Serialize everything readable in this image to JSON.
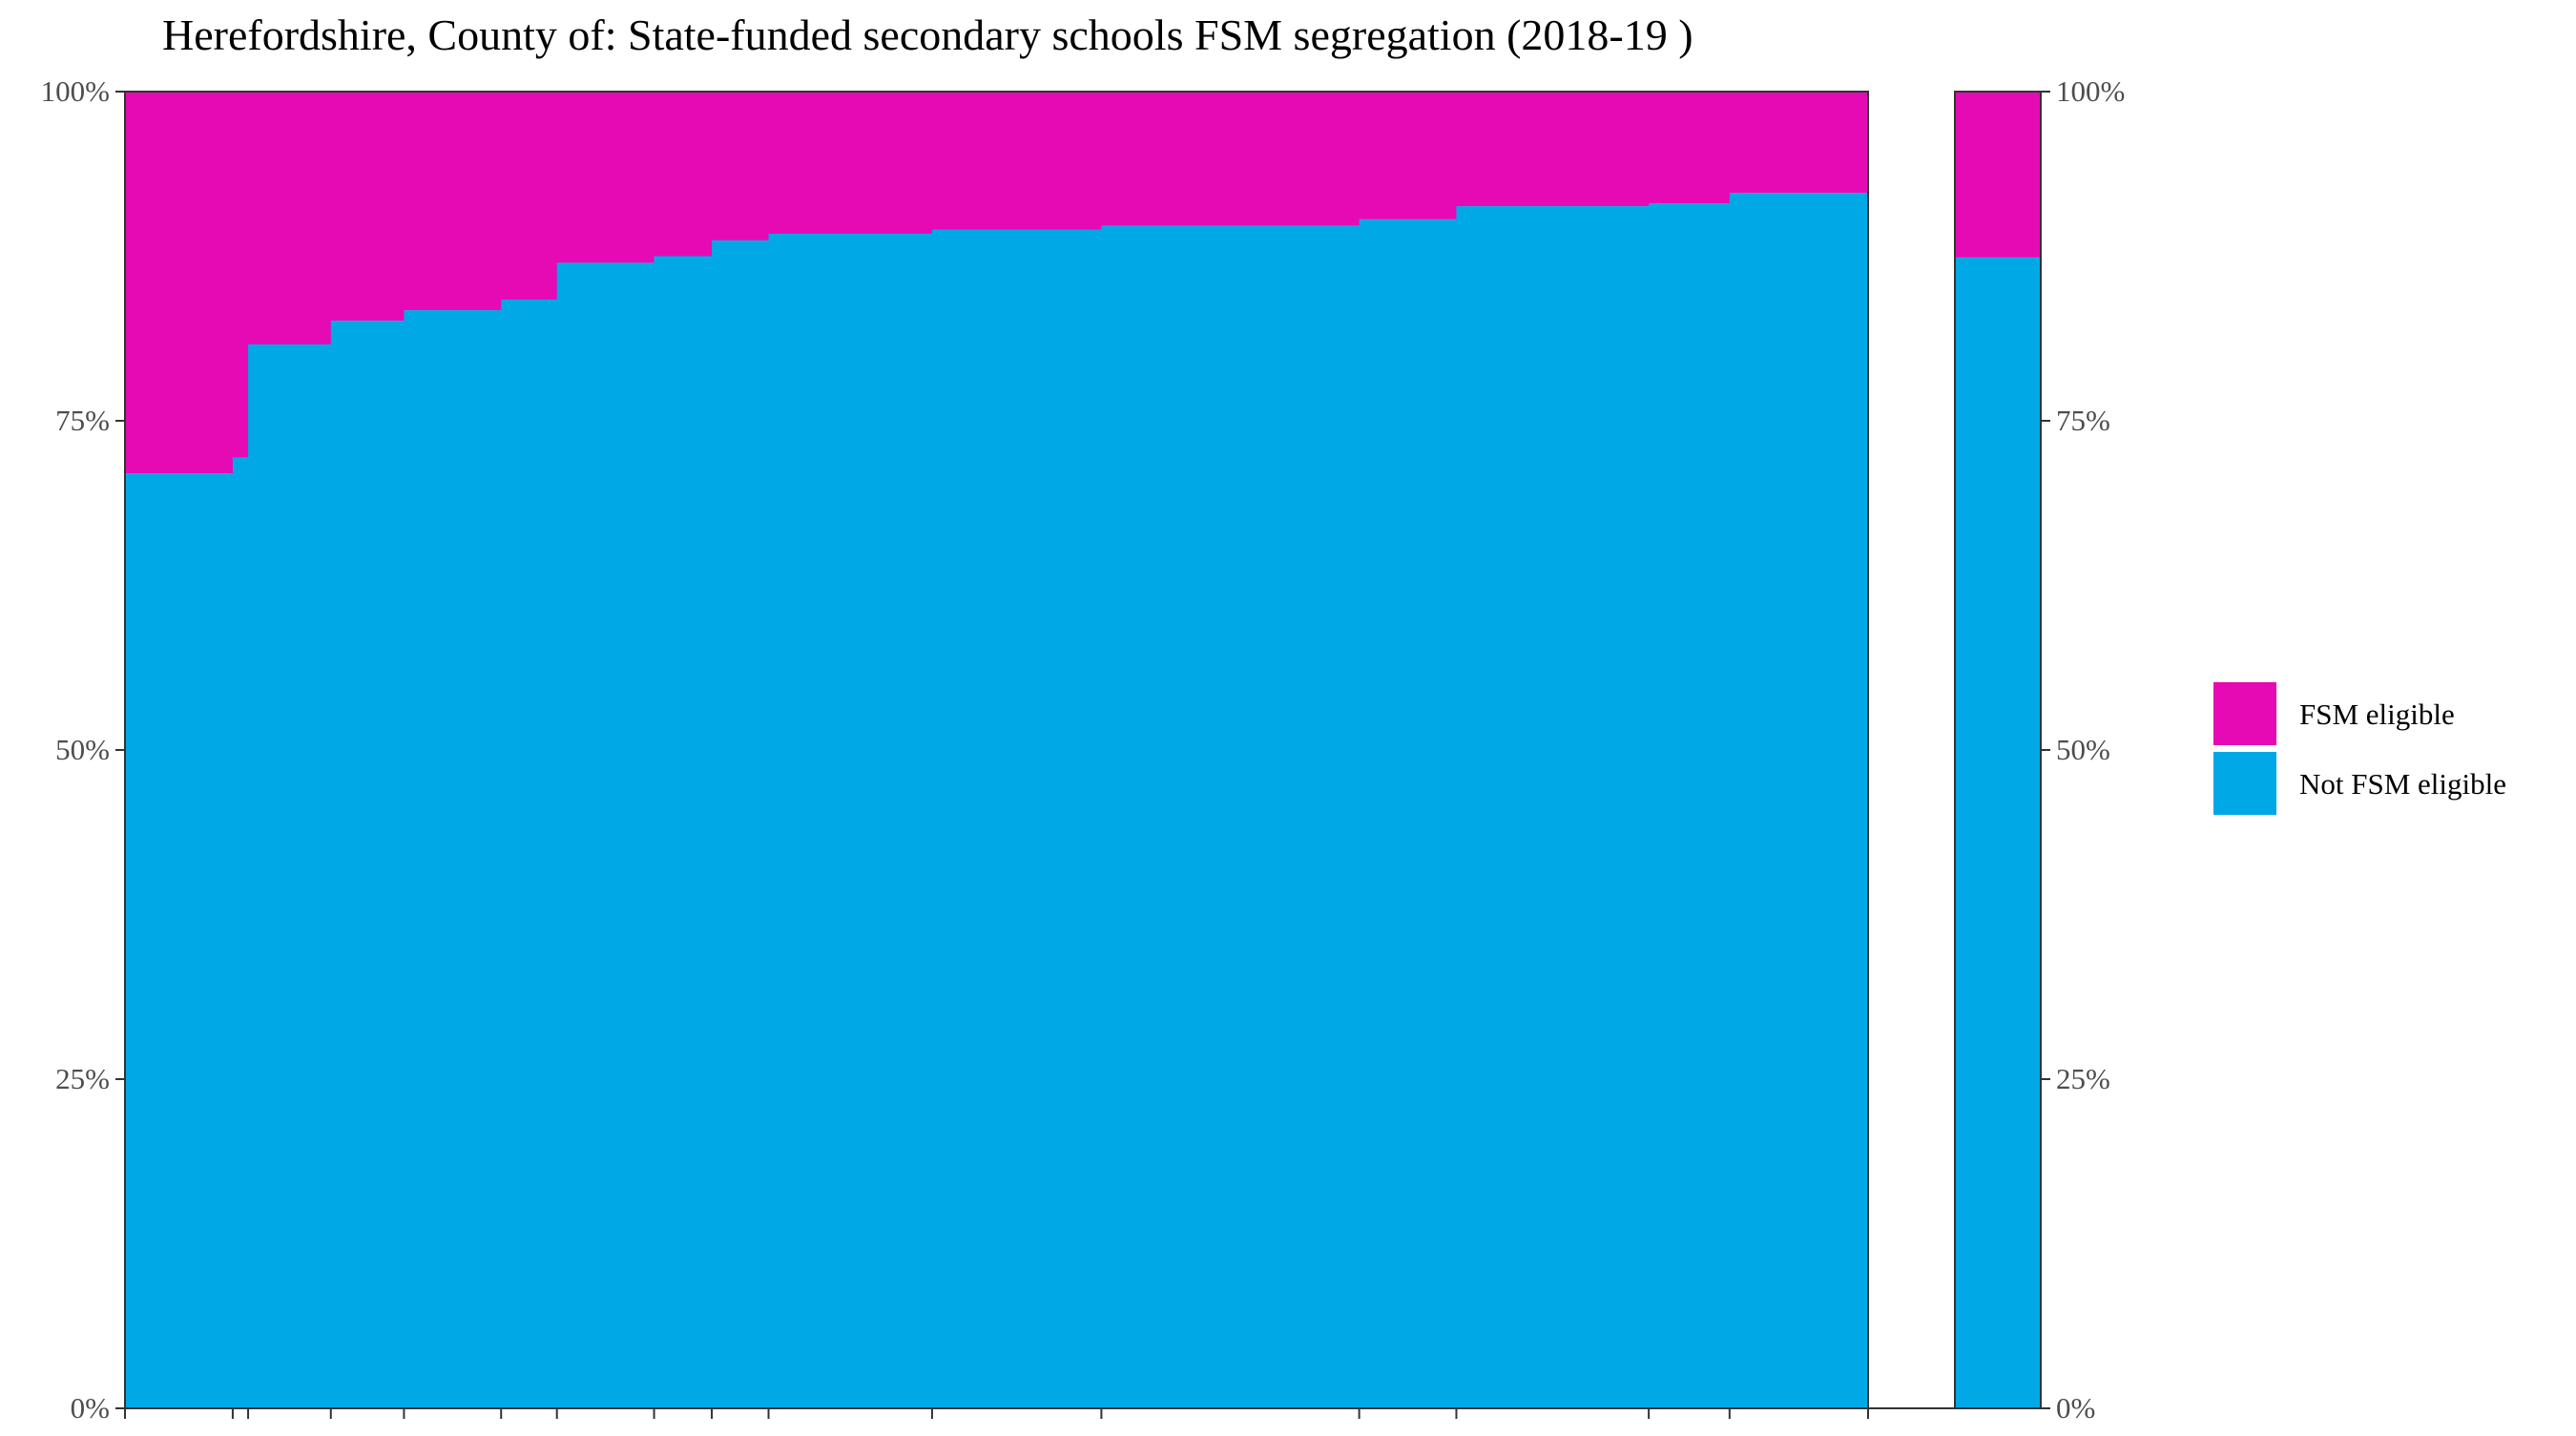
{
  "chart_data": {
    "type": "bar",
    "title": "Herefordshire, County of: State-funded secondary schools FSM segregation (2018-19 )",
    "xlabel": "",
    "ylabel": "",
    "ylim": [
      0,
      100
    ],
    "y_ticks": [
      "0%",
      "25%",
      "50%",
      "75%",
      "100%"
    ],
    "y_tick_values": [
      0,
      25,
      50,
      75,
      100
    ],
    "axes": "left and right",
    "grid": false,
    "legend_position": "right",
    "colors": {
      "fsm": "#E60AB4",
      "not_fsm": "#00A8E6"
    },
    "series": [
      {
        "name": "FSM eligible",
        "values": [
          29.0,
          27.8,
          19.2,
          17.4,
          16.6,
          15.8,
          13.0,
          12.5,
          11.3,
          10.8,
          10.5,
          10.2,
          9.7,
          8.7,
          8.5,
          7.7
        ]
      },
      {
        "name": "Not FSM eligible",
        "values": [
          71.0,
          72.2,
          80.8,
          82.6,
          83.4,
          84.2,
          87.0,
          87.5,
          88.7,
          89.2,
          89.5,
          89.8,
          90.3,
          91.3,
          91.5,
          92.3
        ]
      }
    ],
    "school_bar_widths": [
      112,
      16,
      86,
      76,
      101,
      58,
      101,
      60,
      59,
      170,
      176,
      268,
      101,
      200,
      84,
      144
    ],
    "summary_bar": {
      "fsm": 12.6,
      "not_fsm": 87.4
    }
  }
}
